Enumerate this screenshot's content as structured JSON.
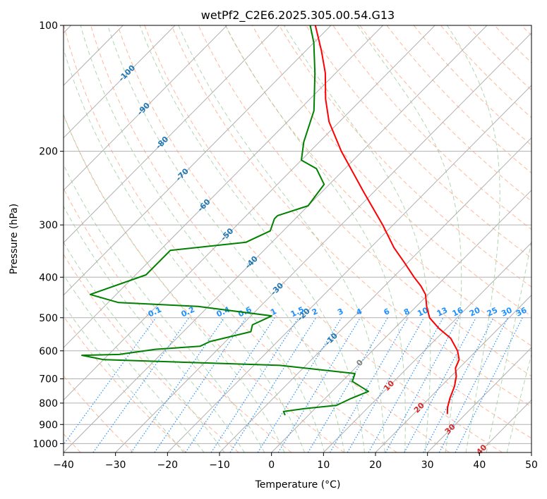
{
  "chart_data": {
    "type": "line",
    "subtype": "skew-t log-p",
    "title": "wetPf2_C2E6.2025.305.00.54.G13",
    "xlabel": "Temperature (°C)",
    "ylabel": "Pressure (hPa)",
    "xlim": [
      -40,
      50
    ],
    "ylim": [
      1050,
      100
    ],
    "y_scale": "log",
    "grid": true,
    "x_ticks": [
      -40,
      -30,
      -20,
      -10,
      0,
      10,
      20,
      30,
      40,
      50
    ],
    "x_tick_labels": [
      "−40",
      "−30",
      "−20",
      "−10",
      "0",
      "10",
      "20",
      "30",
      "40",
      "50"
    ],
    "y_ticks": [
      100,
      200,
      300,
      400,
      500,
      600,
      700,
      800,
      900,
      1000
    ],
    "y_tick_labels": [
      "100",
      "200",
      "300",
      "400",
      "500",
      "600",
      "700",
      "800",
      "900",
      "1000"
    ],
    "series": [
      {
        "color": "#ff0000",
        "role": "temperature",
        "points": [
          {
            "p": 850,
            "t": 26.5
          },
          {
            "p": 820,
            "t": 25.3
          },
          {
            "p": 780,
            "t": 24.0
          },
          {
            "p": 730,
            "t": 22.6
          },
          {
            "p": 690,
            "t": 21.0
          },
          {
            "p": 660,
            "t": 19.3
          },
          {
            "p": 630,
            "t": 18.4
          },
          {
            "p": 600,
            "t": 16.4
          },
          {
            "p": 560,
            "t": 12.7
          },
          {
            "p": 530,
            "t": 8.5
          },
          {
            "p": 500,
            "t": 4.7
          },
          {
            "p": 470,
            "t": 2.0
          },
          {
            "p": 440,
            "t": -0.5
          },
          {
            "p": 420,
            "t": -3.0
          },
          {
            "p": 400,
            "t": -6.0
          },
          {
            "p": 370,
            "t": -10.5
          },
          {
            "p": 340,
            "t": -15.5
          },
          {
            "p": 300,
            "t": -22.0
          },
          {
            "p": 250,
            "t": -32.0
          },
          {
            "p": 200,
            "t": -44.0
          },
          {
            "p": 170,
            "t": -52.0
          },
          {
            "p": 150,
            "t": -57.0
          },
          {
            "p": 130,
            "t": -62.0
          },
          {
            "p": 115,
            "t": -67.0
          },
          {
            "p": 100,
            "t": -73.0
          }
        ]
      },
      {
        "color": "#008000",
        "role": "dewpoint",
        "points": [
          {
            "p": 855,
            "t": -4.5
          },
          {
            "p": 838,
            "t": -5.5
          },
          {
            "p": 825,
            "t": -2.0
          },
          {
            "p": 810,
            "t": 3.5
          },
          {
            "p": 780,
            "t": 5.0
          },
          {
            "p": 750,
            "t": 7.0
          },
          {
            "p": 710,
            "t": 2.0
          },
          {
            "p": 680,
            "t": 1.0
          },
          {
            "p": 650,
            "t": -15.0
          },
          {
            "p": 630,
            "t": -50.0
          },
          {
            "p": 615,
            "t": -55.0
          },
          {
            "p": 612,
            "t": -48.0
          },
          {
            "p": 595,
            "t": -42.0
          },
          {
            "p": 585,
            "t": -34.0
          },
          {
            "p": 570,
            "t": -33.0
          },
          {
            "p": 540,
            "t": -27.0
          },
          {
            "p": 520,
            "t": -28.0
          },
          {
            "p": 495,
            "t": -26.0
          },
          {
            "p": 470,
            "t": -42.0
          },
          {
            "p": 460,
            "t": -58.0
          },
          {
            "p": 440,
            "t": -65.0
          },
          {
            "p": 395,
            "t": -58.0
          },
          {
            "p": 345,
            "t": -58.0
          },
          {
            "p": 330,
            "t": -45.0
          },
          {
            "p": 310,
            "t": -42.5
          },
          {
            "p": 290,
            "t": -44.0
          },
          {
            "p": 285,
            "t": -44.0
          },
          {
            "p": 270,
            "t": -40.0
          },
          {
            "p": 240,
            "t": -41.0
          },
          {
            "p": 220,
            "t": -45.5
          },
          {
            "p": 210,
            "t": -50.0
          },
          {
            "p": 190,
            "t": -53.0
          },
          {
            "p": 160,
            "t": -57.0
          },
          {
            "p": 130,
            "t": -64.0
          },
          {
            "p": 110,
            "t": -70.0
          },
          {
            "p": 100,
            "t": -74.0
          }
        ]
      }
    ],
    "isotherm_labels": [
      "-100",
      "-90",
      "-80",
      "-70",
      "-60",
      "-50",
      "-40",
      "-30",
      "-20",
      "-10",
      "0",
      "10",
      "20",
      "30",
      "40"
    ],
    "mixing_ratio_labels": [
      "0.1",
      "0.2",
      "0.4",
      "0.6",
      "1",
      "1.5",
      "2",
      "3",
      "4",
      "6",
      "8",
      "10",
      "13",
      "16",
      "20",
      "25",
      "30",
      "36"
    ],
    "colors": {
      "temperature": "#ff0000",
      "dewpoint": "#008000",
      "isotherm_label_cold": "#1f77b4",
      "isotherm_label_warm": "#d62728",
      "isotherm_label_zero": "#7f7f7f",
      "mixing_ratio": "#1e90ff",
      "dry_adiabat": "#ffa07a",
      "moist_adiabat": "#90c490",
      "grid": "#b0b0b0"
    }
  }
}
